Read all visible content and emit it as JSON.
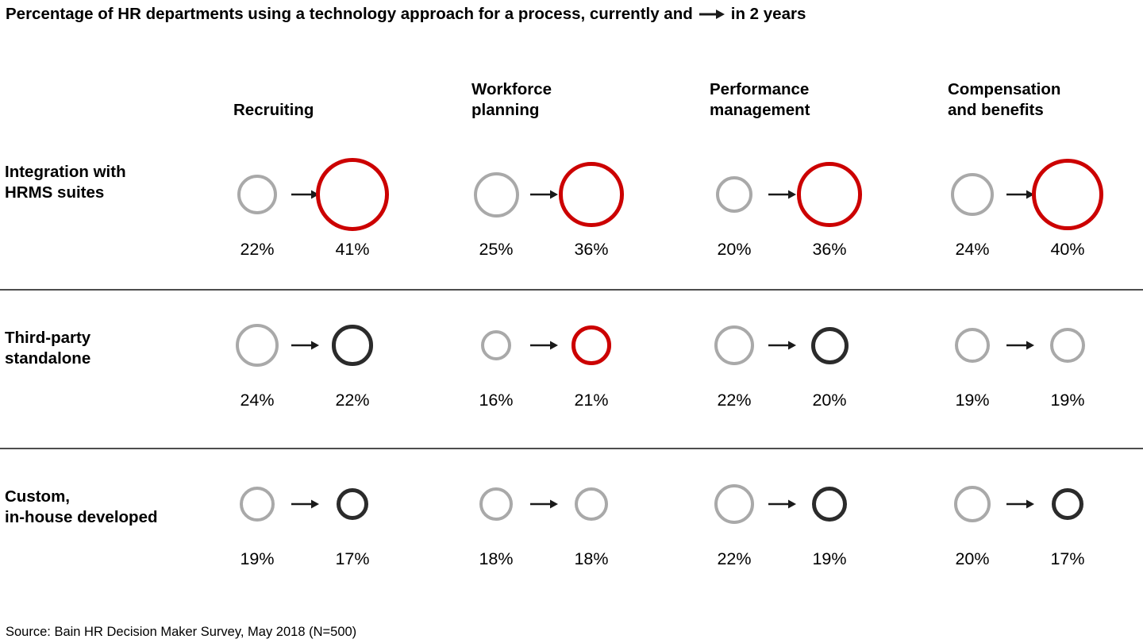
{
  "page": {
    "title_prefix": "Percentage of HR departments using a technology approach for a process, currently and",
    "title_suffix": "in 2 years",
    "source": "Source: Bain HR Decision Maker Survey, May 2018 (N=500)"
  },
  "colors": {
    "current_circle": "#a9a9a9",
    "future_red": "#cc0000",
    "future_black": "#2b2b2b",
    "future_gray": "#a9a9a9",
    "arrow": "#1a1a1a",
    "divider": "#4d4d4d"
  },
  "chart_data": {
    "type": "table",
    "mark": "paired-circles-with-arrow",
    "title": "Percentage of HR departments using a technology approach for a process, currently and → in 2 years",
    "unit": "%",
    "size_encoding": "circle diameter proportional to percentage value",
    "columns": [
      {
        "label_lines": [
          "Recruiting"
        ]
      },
      {
        "label_lines": [
          "Workforce",
          "planning"
        ]
      },
      {
        "label_lines": [
          "Performance",
          "management"
        ]
      },
      {
        "label_lines": [
          "Compensation",
          "and benefits"
        ]
      }
    ],
    "rows": [
      {
        "label_lines": [
          "Integration with",
          "HRMS suites"
        ],
        "cells": [
          {
            "current": 22,
            "current_label": "22%",
            "future": 41,
            "future_label": "41%",
            "future_color": "red"
          },
          {
            "current": 25,
            "current_label": "25%",
            "future": 36,
            "future_label": "36%",
            "future_color": "red"
          },
          {
            "current": 20,
            "current_label": "20%",
            "future": 36,
            "future_label": "36%",
            "future_color": "red"
          },
          {
            "current": 24,
            "current_label": "24%",
            "future": 40,
            "future_label": "40%",
            "future_color": "red"
          }
        ]
      },
      {
        "label_lines": [
          "Third-party",
          "standalone"
        ],
        "cells": [
          {
            "current": 24,
            "current_label": "24%",
            "future": 22,
            "future_label": "22%",
            "future_color": "black"
          },
          {
            "current": 16,
            "current_label": "16%",
            "future": 21,
            "future_label": "21%",
            "future_color": "red"
          },
          {
            "current": 22,
            "current_label": "22%",
            "future": 20,
            "future_label": "20%",
            "future_color": "black"
          },
          {
            "current": 19,
            "current_label": "19%",
            "future": 19,
            "future_label": "19%",
            "future_color": "gray"
          }
        ]
      },
      {
        "label_lines": [
          "Custom,",
          "in-house developed"
        ],
        "cells": [
          {
            "current": 19,
            "current_label": "19%",
            "future": 17,
            "future_label": "17%",
            "future_color": "black"
          },
          {
            "current": 18,
            "current_label": "18%",
            "future": 18,
            "future_label": "18%",
            "future_color": "gray"
          },
          {
            "current": 22,
            "current_label": "22%",
            "future": 19,
            "future_label": "19%",
            "future_color": "black"
          },
          {
            "current": 20,
            "current_label": "20%",
            "future": 17,
            "future_label": "17%",
            "future_color": "black"
          }
        ]
      }
    ]
  }
}
